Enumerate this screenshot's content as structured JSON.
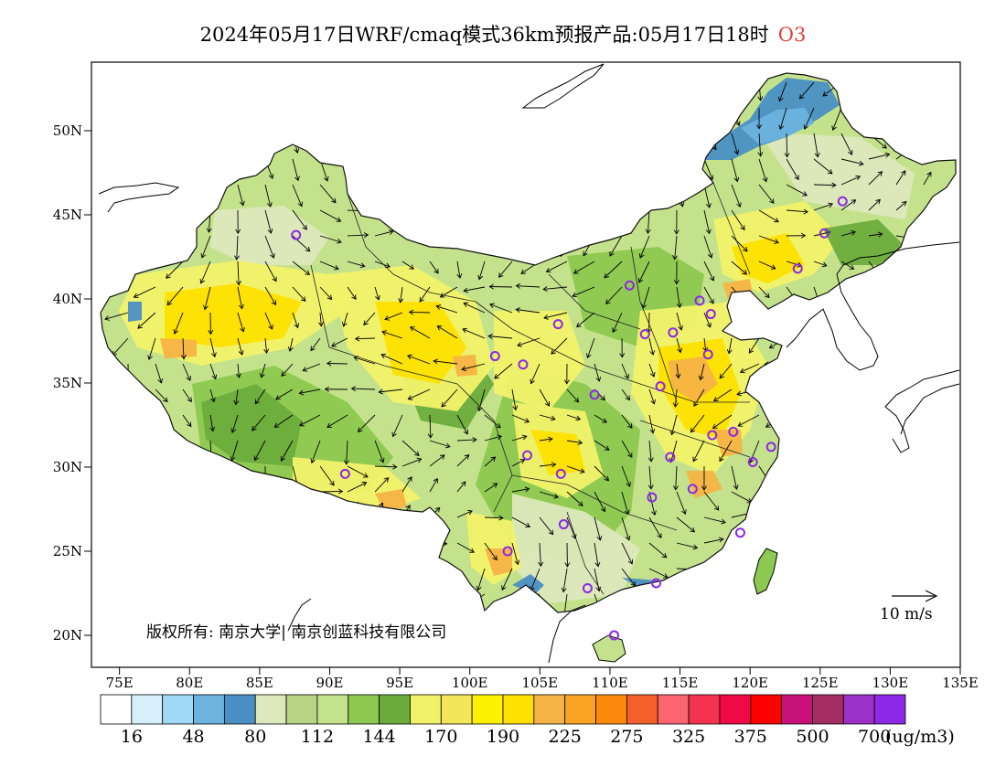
{
  "title": {
    "text": "2024年05月17日WRF/cmaq模式36km预报产品:05月17日18时",
    "parameter": "O3",
    "parameter_color": "#e0403a"
  },
  "axes": {
    "x_ticks": [
      "75E",
      "80E",
      "85E",
      "90E",
      "95E",
      "100E",
      "105E",
      "110E",
      "115E",
      "120E",
      "125E",
      "130E",
      "135E"
    ],
    "y_ticks": [
      "50N",
      "45N",
      "40N",
      "35N",
      "30N",
      "25N",
      "20N"
    ]
  },
  "copyright": "版权所有: 南京大学| 南京创蓝科技有限公司",
  "wind_reference": "10  m/s",
  "colorbar": {
    "colors": [
      "#ffffff",
      "#d6effb",
      "#9fd9f5",
      "#6cb3de",
      "#4a8fc4",
      "#dde8bc",
      "#b9d385",
      "#c4e28c",
      "#8dc850",
      "#6cac3c",
      "#f2f26a",
      "#f3e65a",
      "#fbf100",
      "#fde000",
      "#f6b345",
      "#fba424",
      "#fd8a0a",
      "#f45f2a",
      "#fc6470",
      "#f4334f",
      "#f00a45",
      "#fd0000",
      "#c8127a",
      "#a62d63",
      "#9c31c8",
      "#8c28e6"
    ],
    "labels": [
      "16",
      "48",
      "80",
      "112",
      "144",
      "170",
      "190",
      "225",
      "275",
      "325",
      "375",
      "500",
      "700"
    ],
    "units": "(ug/m3)"
  },
  "cities": [
    [
      87.6,
      43.8
    ],
    [
      91.1,
      29.6
    ],
    [
      101.8,
      36.6
    ],
    [
      103.8,
      36.1
    ],
    [
      106.3,
      38.5
    ],
    [
      104.1,
      30.7
    ],
    [
      106.5,
      29.6
    ],
    [
      102.7,
      25.0
    ],
    [
      106.7,
      26.6
    ],
    [
      108.4,
      22.8
    ],
    [
      110.3,
      20.0
    ],
    [
      113.3,
      23.1
    ],
    [
      108.9,
      34.3
    ],
    [
      112.5,
      37.9
    ],
    [
      114.5,
      38.0
    ],
    [
      116.4,
      39.9
    ],
    [
      117.2,
      39.1
    ],
    [
      113.6,
      34.8
    ],
    [
      117.0,
      36.7
    ],
    [
      111.4,
      40.8
    ],
    [
      123.4,
      41.8
    ],
    [
      125.3,
      43.9
    ],
    [
      126.6,
      45.8
    ],
    [
      117.3,
      31.9
    ],
    [
      118.8,
      32.1
    ],
    [
      121.5,
      31.2
    ],
    [
      120.2,
      30.3
    ],
    [
      115.9,
      28.7
    ],
    [
      113.0,
      28.2
    ],
    [
      114.3,
      30.6
    ],
    [
      119.3,
      26.1
    ]
  ],
  "map_legend_colors": {
    "ocean_blue": "#4a8fc4",
    "low": "#c4e28c",
    "mid": "#8dc850",
    "yellow": "#fde000",
    "orange": "#f6b345",
    "city_marker": "#8c28e6"
  }
}
